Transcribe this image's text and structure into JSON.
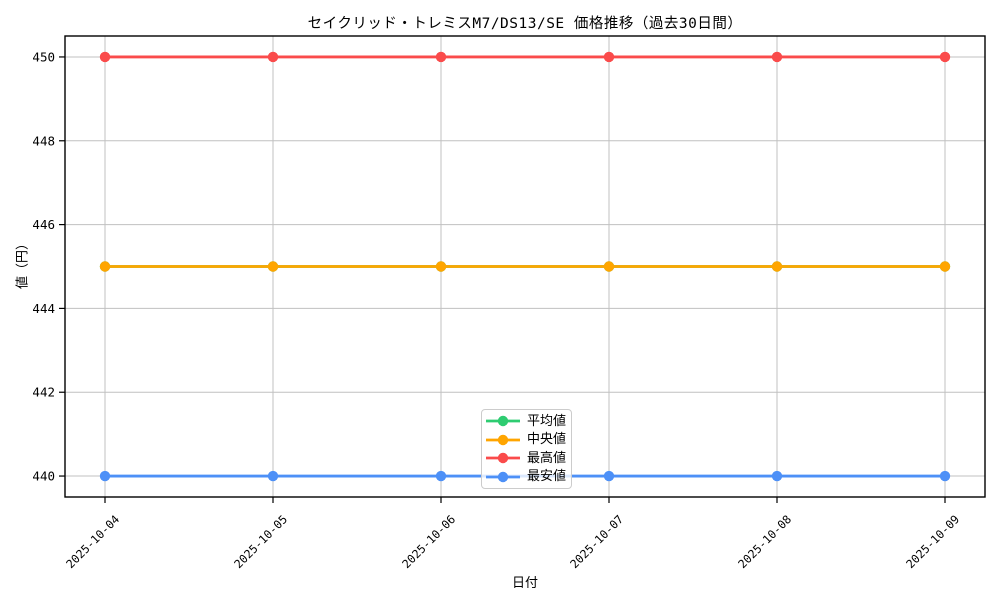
{
  "chart_data": {
    "type": "line",
    "title": "セイクリッド・トレミスM7/DS13/SE 価格推移（過去30日間）",
    "xlabel": "日付",
    "ylabel": "値（円）",
    "x": [
      "2025-10-04",
      "2025-10-05",
      "2025-10-06",
      "2025-10-07",
      "2025-10-08",
      "2025-10-09"
    ],
    "y_ticks": [
      440,
      442,
      444,
      446,
      448,
      450
    ],
    "ylim": [
      439.5,
      450.5
    ],
    "grid": true,
    "legend_position": "lower-center",
    "series": [
      {
        "key": "average",
        "name": "平均値",
        "color": "#2ecc71",
        "values": [
          445,
          445,
          445,
          445,
          445,
          445
        ]
      },
      {
        "key": "median",
        "name": "中央値",
        "color": "#ffa500",
        "values": [
          445,
          445,
          445,
          445,
          445,
          445
        ]
      },
      {
        "key": "max",
        "name": "最高値",
        "color": "#fa4b4b",
        "values": [
          450,
          450,
          450,
          450,
          450,
          450
        ]
      },
      {
        "key": "min",
        "name": "最安値",
        "color": "#4d90f7",
        "values": [
          440,
          440,
          440,
          440,
          440,
          440
        ]
      }
    ],
    "colors": {
      "grid": "#c0c0c0",
      "spine": "#000000",
      "text": "#000000"
    }
  }
}
